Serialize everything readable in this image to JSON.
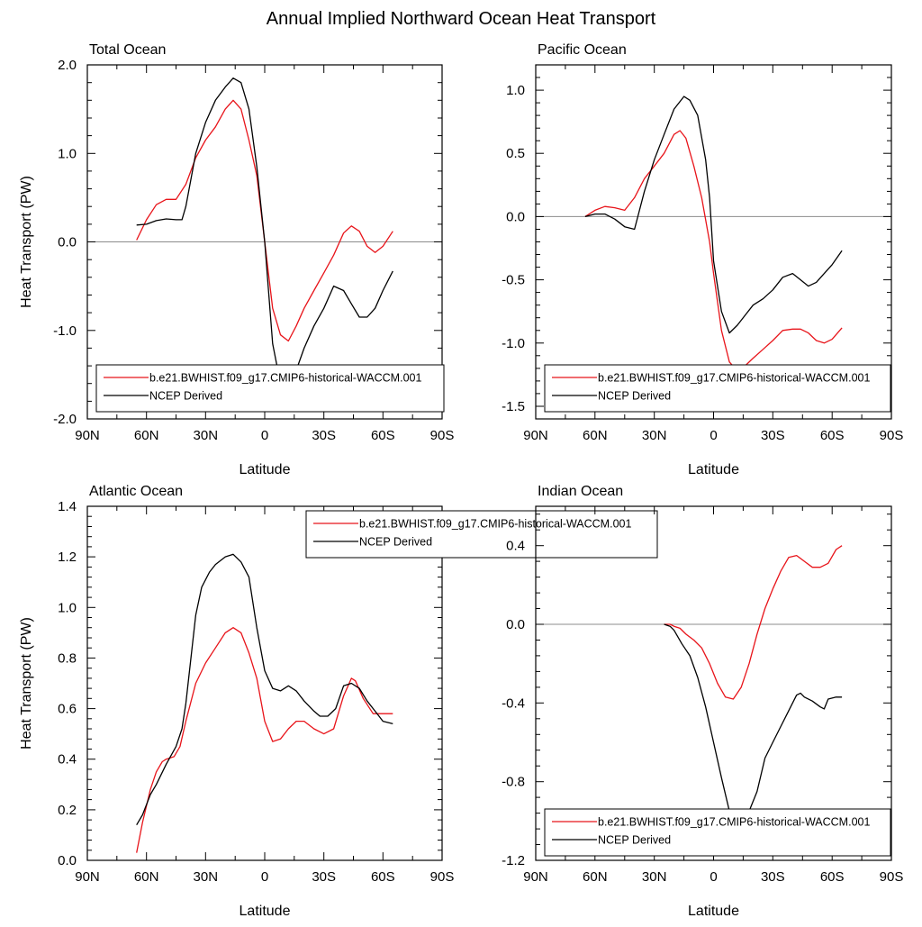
{
  "figure": {
    "title": "Annual Implied Northward Ocean Heat Transport",
    "colors": {
      "model": "#e8141a",
      "obs": "#000000",
      "zero_line": "#8c8c8c",
      "frame": "#000000"
    }
  },
  "chart_data": [
    {
      "type": "line",
      "title": "Total Ocean",
      "xlabel": "Latitude",
      "ylabel": "Heat Transport (PW)",
      "xlim": [
        90,
        -90
      ],
      "ylim": [
        -2.0,
        2.0
      ],
      "xticks": [
        90,
        60,
        30,
        0,
        -30,
        -60,
        -90
      ],
      "xtick_labels": [
        "90N",
        "60N",
        "30N",
        "0",
        "30S",
        "60S",
        "90S"
      ],
      "yticks": [
        -2,
        -1,
        0,
        1,
        2
      ],
      "ytick_labels": [
        "-2.0",
        "-1.0",
        "0.0",
        "1.0",
        "2.0"
      ],
      "legend_position": "bottom",
      "series": [
        {
          "name": "b.e21.BWHIST.f09_g17.CMIP6-historical-WACCM.001",
          "color": "#e8141a",
          "x": [
            65,
            60,
            55,
            50,
            45,
            40,
            35,
            30,
            25,
            20,
            16,
            12,
            8,
            4,
            0,
            -4,
            -8,
            -12,
            -16,
            -20,
            -25,
            -30,
            -35,
            -40,
            -44,
            -48,
            -52,
            -56,
            -60,
            -65
          ],
          "y": [
            0.02,
            0.25,
            0.42,
            0.48,
            0.48,
            0.65,
            0.95,
            1.15,
            1.3,
            1.5,
            1.6,
            1.5,
            1.15,
            0.75,
            0.0,
            -0.75,
            -1.05,
            -1.12,
            -0.95,
            -0.75,
            -0.55,
            -0.35,
            -0.15,
            0.1,
            0.18,
            0.12,
            -0.05,
            -0.12,
            -0.05,
            0.12
          ]
        },
        {
          "name": "NCEP Derived",
          "color": "#000000",
          "x": [
            65,
            60,
            55,
            50,
            45,
            42,
            40,
            35,
            30,
            25,
            20,
            16,
            12,
            8,
            4,
            0,
            -4,
            -8,
            -12,
            -16,
            -20,
            -25,
            -30,
            -35,
            -40,
            -44,
            -48,
            -52,
            -56,
            -60,
            -65
          ],
          "y": [
            0.19,
            0.2,
            0.24,
            0.26,
            0.25,
            0.25,
            0.4,
            1.0,
            1.35,
            1.6,
            1.75,
            1.85,
            1.8,
            1.5,
            0.85,
            0.0,
            -1.15,
            -1.6,
            -1.65,
            -1.45,
            -1.2,
            -0.95,
            -0.75,
            -0.5,
            -0.55,
            -0.7,
            -0.85,
            -0.85,
            -0.75,
            -0.55,
            -0.33
          ]
        }
      ]
    },
    {
      "type": "line",
      "title": "Pacific Ocean",
      "xlabel": "Latitude",
      "ylabel": "",
      "xlim": [
        90,
        -90
      ],
      "ylim": [
        -1.6,
        1.2
      ],
      "xticks": [
        90,
        60,
        30,
        0,
        -30,
        -60,
        -90
      ],
      "xtick_labels": [
        "90N",
        "60N",
        "30N",
        "0",
        "30S",
        "60S",
        "90S"
      ],
      "yticks": [
        -1.5,
        -1.0,
        -0.5,
        0.0,
        0.5,
        1.0
      ],
      "ytick_labels": [
        "-1.5",
        "-1.0",
        "-0.5",
        "0.0",
        "0.5",
        "1.0"
      ],
      "legend_position": "bottom",
      "series": [
        {
          "name": "b.e21.BWHIST.f09_g17.CMIP6-historical-WACCM.001",
          "color": "#e8141a",
          "x": [
            65,
            60,
            55,
            50,
            45,
            40,
            35,
            30,
            25,
            20,
            17,
            14,
            10,
            6,
            2,
            0,
            -4,
            -8,
            -12,
            -16,
            -20,
            -25,
            -30,
            -35,
            -40,
            -44,
            -48,
            -52,
            -56,
            -60,
            -65
          ],
          "y": [
            0.0,
            0.05,
            0.08,
            0.07,
            0.05,
            0.15,
            0.3,
            0.4,
            0.5,
            0.65,
            0.68,
            0.62,
            0.4,
            0.15,
            -0.2,
            -0.45,
            -0.9,
            -1.15,
            -1.22,
            -1.18,
            -1.12,
            -1.05,
            -0.98,
            -0.9,
            -0.89,
            -0.89,
            -0.92,
            -0.98,
            -1.0,
            -0.97,
            -0.88
          ]
        },
        {
          "name": "NCEP Derived",
          "color": "#000000",
          "x": [
            65,
            60,
            55,
            50,
            45,
            40,
            35,
            30,
            25,
            20,
            15,
            12,
            8,
            4,
            2,
            0,
            -4,
            -8,
            -12,
            -16,
            -20,
            -25,
            -30,
            -35,
            -40,
            -44,
            -48,
            -52,
            -56,
            -60,
            -65
          ],
          "y": [
            0.0,
            0.02,
            0.02,
            -0.02,
            -0.08,
            -0.1,
            0.2,
            0.45,
            0.65,
            0.85,
            0.95,
            0.92,
            0.8,
            0.45,
            0.15,
            -0.35,
            -0.75,
            -0.92,
            -0.86,
            -0.78,
            -0.7,
            -0.65,
            -0.58,
            -0.48,
            -0.45,
            -0.5,
            -0.55,
            -0.52,
            -0.45,
            -0.38,
            -0.27
          ]
        }
      ]
    },
    {
      "type": "line",
      "title": "Atlantic Ocean",
      "xlabel": "Latitude",
      "ylabel": "Heat Transport (PW)",
      "xlim": [
        90,
        -90
      ],
      "ylim": [
        0.0,
        1.4
      ],
      "xticks": [
        90,
        60,
        30,
        0,
        -30,
        -60,
        -90
      ],
      "xtick_labels": [
        "90N",
        "60N",
        "30N",
        "0",
        "30S",
        "60S",
        "90S"
      ],
      "yticks": [
        0.0,
        0.2,
        0.4,
        0.6,
        0.8,
        1.0,
        1.2,
        1.4
      ],
      "ytick_labels": [
        "0.0",
        "0.2",
        "0.4",
        "0.6",
        "0.8",
        "1.0",
        "1.2",
        "1.4"
      ],
      "legend_position": "top-center",
      "series": [
        {
          "name": "b.e21.BWHIST.f09_g17.CMIP6-historical-WACCM.001",
          "color": "#e8141a",
          "x": [
            65,
            62,
            58,
            55,
            52,
            50,
            46,
            43,
            40,
            35,
            30,
            25,
            20,
            16,
            12,
            8,
            4,
            0,
            -4,
            -8,
            -12,
            -16,
            -20,
            -25,
            -30,
            -35,
            -40,
            -44,
            -46,
            -50,
            -55,
            -60,
            -65
          ],
          "y": [
            0.03,
            0.15,
            0.28,
            0.35,
            0.39,
            0.4,
            0.41,
            0.45,
            0.55,
            0.7,
            0.78,
            0.84,
            0.9,
            0.92,
            0.9,
            0.82,
            0.72,
            0.55,
            0.47,
            0.48,
            0.52,
            0.55,
            0.55,
            0.52,
            0.5,
            0.52,
            0.65,
            0.72,
            0.71,
            0.64,
            0.58,
            0.58,
            0.58
          ]
        },
        {
          "name": "NCEP Derived",
          "color": "#000000",
          "x": [
            65,
            62,
            58,
            55,
            50,
            45,
            42,
            40,
            35,
            32,
            28,
            25,
            20,
            16,
            12,
            8,
            4,
            0,
            -4,
            -8,
            -12,
            -16,
            -20,
            -25,
            -28,
            -32,
            -36,
            -40,
            -44,
            -48,
            -52,
            -56,
            -60,
            -65
          ],
          "y": [
            0.14,
            0.18,
            0.26,
            0.3,
            0.38,
            0.45,
            0.52,
            0.62,
            0.97,
            1.08,
            1.14,
            1.17,
            1.2,
            1.21,
            1.18,
            1.12,
            0.92,
            0.75,
            0.68,
            0.67,
            0.69,
            0.67,
            0.63,
            0.59,
            0.57,
            0.57,
            0.6,
            0.69,
            0.7,
            0.68,
            0.63,
            0.59,
            0.55,
            0.54
          ]
        }
      ]
    },
    {
      "type": "line",
      "title": "Indian Ocean",
      "xlabel": "Latitude",
      "ylabel": "",
      "xlim": [
        90,
        -90
      ],
      "ylim": [
        -1.2,
        0.6
      ],
      "xticks": [
        90,
        60,
        30,
        0,
        -30,
        -60,
        -90
      ],
      "xtick_labels": [
        "90N",
        "60N",
        "30N",
        "0",
        "30S",
        "60S",
        "90S"
      ],
      "yticks": [
        -1.2,
        -0.8,
        -0.4,
        0.0,
        0.4
      ],
      "ytick_labels": [
        "-1.2",
        "-0.8",
        "-0.4",
        "0.0",
        "0.4"
      ],
      "legend_position": "bottom",
      "series": [
        {
          "name": "b.e21.BWHIST.f09_g17.CMIP6-historical-WACCM.001",
          "color": "#e8141a",
          "x": [
            25,
            22,
            20,
            17,
            14,
            10,
            6,
            2,
            -2,
            -6,
            -10,
            -14,
            -18,
            -22,
            -26,
            -30,
            -34,
            -38,
            -42,
            -46,
            -50,
            -54,
            -58,
            -62,
            -65
          ],
          "y": [
            0.0,
            0.0,
            -0.01,
            -0.02,
            -0.05,
            -0.08,
            -0.12,
            -0.2,
            -0.3,
            -0.37,
            -0.38,
            -0.32,
            -0.2,
            -0.05,
            0.08,
            0.18,
            0.27,
            0.34,
            0.35,
            0.32,
            0.29,
            0.29,
            0.31,
            0.38,
            0.4
          ]
        },
        {
          "name": "NCEP Derived",
          "color": "#000000",
          "x": [
            25,
            22,
            20,
            16,
            12,
            8,
            4,
            0,
            -4,
            -8,
            -10,
            -12,
            -14,
            -18,
            -22,
            -26,
            -30,
            -34,
            -38,
            -42,
            -44,
            -46,
            -50,
            -54,
            -56,
            -58,
            -62,
            -65
          ],
          "y": [
            0.0,
            -0.01,
            -0.03,
            -0.1,
            -0.16,
            -0.27,
            -0.42,
            -0.6,
            -0.78,
            -0.95,
            -1.0,
            -1.04,
            -1.02,
            -0.95,
            -0.85,
            -0.68,
            -0.6,
            -0.52,
            -0.44,
            -0.36,
            -0.35,
            -0.37,
            -0.39,
            -0.42,
            -0.43,
            -0.38,
            -0.37,
            -0.37
          ]
        }
      ]
    }
  ]
}
